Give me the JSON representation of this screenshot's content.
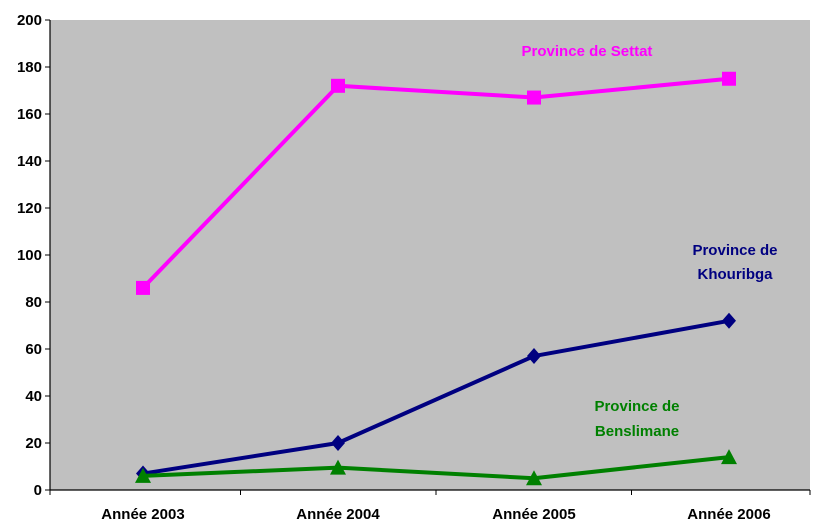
{
  "chart_data": {
    "type": "line",
    "categories": [
      "Année 2003",
      "Année 2004",
      "Année 2005",
      "Année 2006"
    ],
    "ylim": [
      0,
      200
    ],
    "yticks": [
      0,
      20,
      40,
      60,
      80,
      100,
      120,
      140,
      160,
      180,
      200
    ],
    "grid": false,
    "plot_background": "#c0c0c0",
    "legend": "none (series labeled inline)",
    "series": [
      {
        "name": "Province de Settat",
        "label_lines": [
          "Province de Settat"
        ],
        "values": [
          86,
          172,
          167,
          175
        ],
        "color": "#ff00ff",
        "marker": "square"
      },
      {
        "name": "Province de Khouribga",
        "label_lines": [
          "Province de",
          "Khouribga"
        ],
        "values": [
          7,
          20,
          57,
          72
        ],
        "color": "#000080",
        "marker": "diamond"
      },
      {
        "name": "Province de Benslimane",
        "label_lines": [
          "Province de",
          "Benslimane"
        ],
        "values": [
          6,
          9.5,
          5,
          14
        ],
        "color": "#008000",
        "marker": "triangle"
      }
    ]
  }
}
